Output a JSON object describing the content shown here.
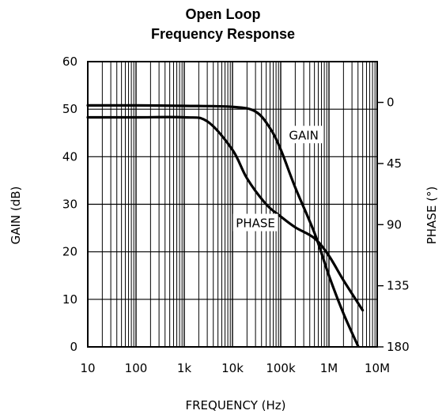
{
  "chart_data": {
    "type": "line",
    "title": [
      "Open Loop",
      "Frequency Response"
    ],
    "xlabel": "FREQUENCY (Hz)",
    "ylabel": "GAIN (dB)",
    "y2label": "PHASE (°)",
    "xscale": "log",
    "xlim": [
      10,
      10000000
    ],
    "ylim": [
      0,
      60
    ],
    "y2lim": [
      180,
      -30
    ],
    "grid": true,
    "x_ticks": [
      {
        "v": 10,
        "label": "10"
      },
      {
        "v": 100,
        "label": "100"
      },
      {
        "v": 1000,
        "label": "1k"
      },
      {
        "v": 10000,
        "label": "10k"
      },
      {
        "v": 100000,
        "label": "100k"
      },
      {
        "v": 1000000,
        "label": "1M"
      },
      {
        "v": 10000000,
        "label": "10M"
      }
    ],
    "y_ticks": [
      {
        "v": 0,
        "label": "0"
      },
      {
        "v": 10,
        "label": "10"
      },
      {
        "v": 20,
        "label": "20"
      },
      {
        "v": 30,
        "label": "30"
      },
      {
        "v": 40,
        "label": "40"
      },
      {
        "v": 50,
        "label": "50"
      },
      {
        "v": 60,
        "label": "60"
      }
    ],
    "y2_ticks": [
      {
        "v": 0,
        "label": "0"
      },
      {
        "v": 45,
        "label": "45"
      },
      {
        "v": 90,
        "label": "90"
      },
      {
        "v": 135,
        "label": "135"
      },
      {
        "v": 180,
        "label": "180"
      }
    ],
    "series": [
      {
        "name": "GAIN",
        "axis": "left",
        "x": [
          10,
          100,
          1000,
          10000,
          30000,
          60000,
          100000,
          200000,
          500000,
          1000000,
          2000000,
          4000000
        ],
        "y": [
          50.8,
          50.8,
          50.7,
          50.5,
          49.5,
          46.0,
          41.5,
          33.5,
          24.0,
          15.0,
          7.0,
          0.2
        ]
      },
      {
        "name": "PHASE",
        "axis": "right",
        "x": [
          10,
          100,
          1000,
          3000,
          10000,
          20000,
          50000,
          100000,
          200000,
          500000,
          1000000,
          2000000,
          5000000
        ],
        "y": [
          11,
          11,
          11,
          14,
          35,
          56,
          75,
          84,
          92,
          100,
          113,
          131,
          153
        ]
      }
    ],
    "annotations": [
      {
        "text": "GAIN",
        "x": 300000,
        "y": 44.5
      },
      {
        "text": "PHASE",
        "x": 30000,
        "y": 26.0
      }
    ]
  }
}
